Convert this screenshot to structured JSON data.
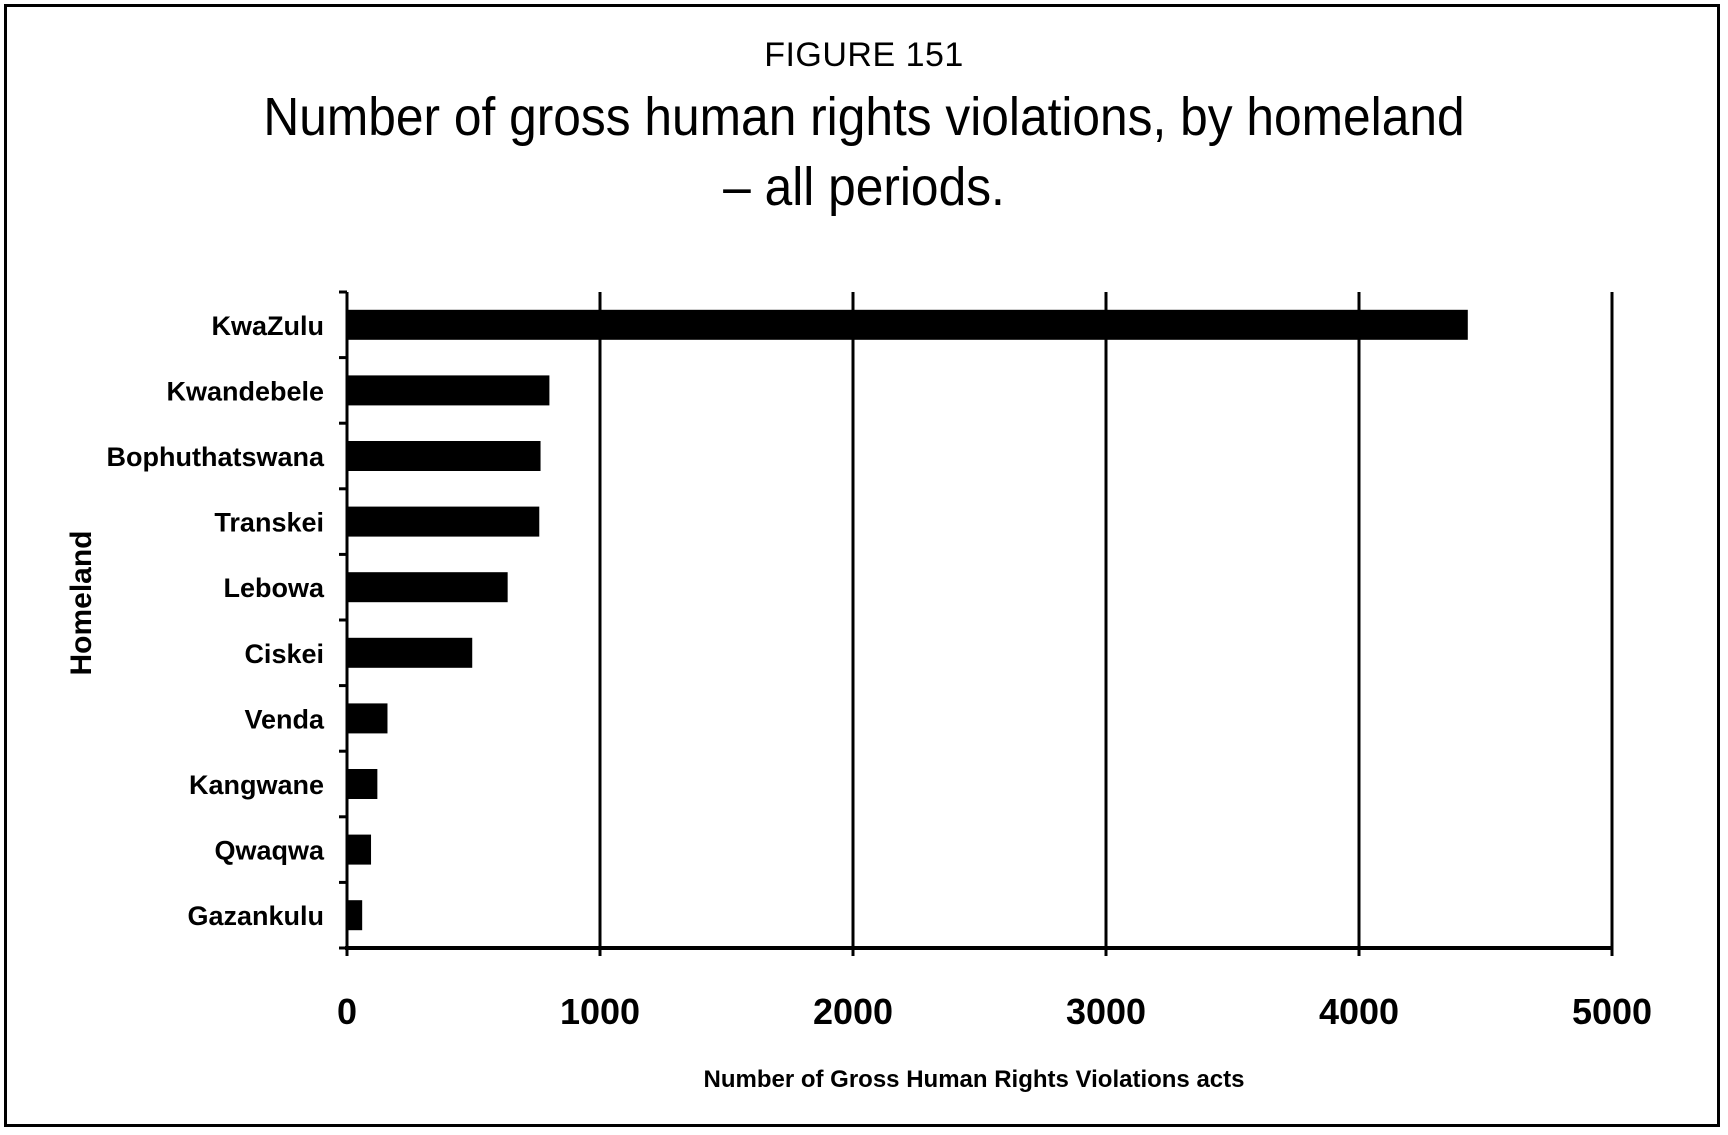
{
  "figure_number": "FIGURE 151",
  "title_lines": [
    "Number of gross human rights violations, by homeland",
    "– all periods."
  ],
  "chart_data": {
    "type": "bar",
    "orientation": "horizontal",
    "categories": [
      "KwaZulu",
      "Kwandebele",
      "Bophuthatswana",
      "Transkei",
      "Lebowa",
      "Ciskei",
      "Venda",
      "Kangwane",
      "Qwaqwa",
      "Gazankulu"
    ],
    "values": [
      4430,
      800,
      765,
      760,
      635,
      495,
      160,
      120,
      95,
      60
    ],
    "title": "Number of gross human rights violations, by homeland – all periods.",
    "xlabel": "Number of Gross Human Rights Violations acts",
    "ylabel": "Homeland",
    "xlim": [
      0,
      5000
    ],
    "xticks": [
      0,
      1000,
      2000,
      3000,
      4000,
      5000
    ],
    "grid": "vertical",
    "legend": "none",
    "bar_color": "#000000"
  }
}
